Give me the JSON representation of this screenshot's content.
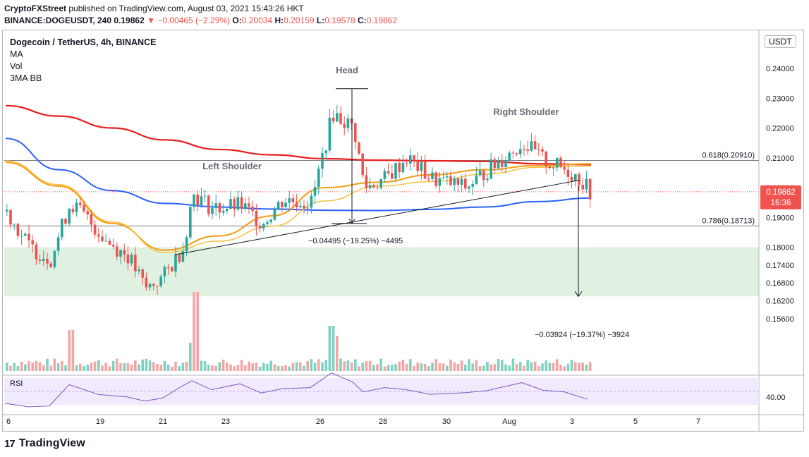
{
  "header": {
    "publisher": "CryptoFXStreet",
    "published_text": "published on TradingView.com, August 03, 2021 15:43:26 HKT",
    "symbol_line": "BINANCE:DOGEUSDT, 240",
    "last": "0.19862",
    "change": "▼ −0.00465 (−2.29%)",
    "o_label": "O:",
    "o": "0.20034",
    "h_label": "H:",
    "h": "0.20159",
    "l_label": "L:",
    "l": "0.19578",
    "c_label": "C:",
    "c": "0.19862"
  },
  "legend": {
    "title": "Dogecoin / TetherUS, 4h, BINANCE",
    "items": [
      "MA",
      "Vol",
      "3MA BB"
    ]
  },
  "currency_button": "USDT",
  "footer": {
    "brand": "TradingView",
    "logo_text": "17"
  },
  "chart_data": {
    "type": "candlestick",
    "title": "Dogecoin / TetherUS, 4h, BINANCE",
    "y_ticks": [
      "0.24000",
      "0.23000",
      "0.22000",
      "0.21000",
      "0.20000",
      "0.19000",
      "0.18000",
      "0.17400",
      "0.16800",
      "0.16200",
      "0.15600"
    ],
    "y_tick_values": [
      0.24,
      0.23,
      0.22,
      0.21,
      0.2,
      0.19,
      0.18,
      0.174,
      0.168,
      0.162,
      0.156
    ],
    "x_ticks": [
      "6",
      "19",
      "21",
      "23",
      "26",
      "28",
      "30",
      "Aug",
      "3",
      "5",
      "7"
    ],
    "last_price_label": "0.19862",
    "countdown_label": "16:36",
    "fib_levels": [
      {
        "label": "0.618(0.20910)",
        "value": 0.2091
      },
      {
        "label": "0.786(0.18713)",
        "value": 0.18713
      }
    ],
    "support_zone": {
      "from": 0.1635,
      "to": 0.18
    },
    "annotations": [
      {
        "text": "Head"
      },
      {
        "text": "Left Shoulder"
      },
      {
        "text": "Right Shoulder"
      },
      {
        "text": "−0.04495 (−19.25%) −4495"
      },
      {
        "text": "−0.03924 (−19.37%) −3924"
      }
    ],
    "series": [
      {
        "name": "MA 200 (red)",
        "color": "#e91e1e",
        "values": [
          0.2275,
          0.224,
          0.22,
          0.216,
          0.2128,
          0.211,
          0.2097,
          0.2092,
          0.209,
          0.2088,
          0.208,
          0.2077
        ]
      },
      {
        "name": "MA 100 (blue)",
        "color": "#2962ff",
        "values": [
          0.2165,
          0.206,
          0.199,
          0.1947,
          0.1935,
          0.1928,
          0.1924,
          0.1923,
          0.1927,
          0.1935,
          0.1953,
          0.1965
        ]
      },
      {
        "name": "MA 50 (orange)",
        "color": "#f39c12",
        "values": [
          0.2085,
          0.2005,
          0.188,
          0.179,
          0.1838,
          0.1905,
          0.2,
          0.2018,
          0.2043,
          0.206,
          0.2074,
          0.208
        ]
      },
      {
        "name": "MA 20 (yellow)",
        "color": "#f5c242",
        "values": [
          0.209,
          0.201,
          0.1885,
          0.1782,
          0.182,
          0.187,
          0.1955,
          0.2005,
          0.202,
          0.2045,
          0.2068,
          0.2072
        ]
      }
    ],
    "rsi": {
      "label": "RSI",
      "tick": "40.00"
    }
  }
}
